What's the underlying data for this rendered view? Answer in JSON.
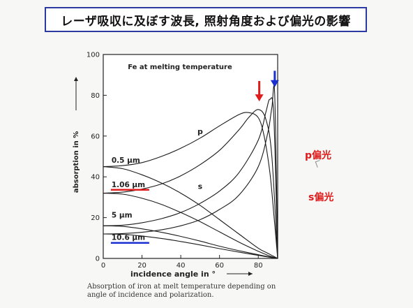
{
  "slide": {
    "title": "レーザ吸収に及ぼす波長, 照射角度および偏光の影響"
  },
  "side_labels": {
    "p": "p偏光",
    "s": "s偏光"
  },
  "caption": {
    "line1": "Absorption of iron at melt temperature depending on",
    "line2": "angle of incidence and polarization."
  },
  "colors": {
    "title_border": "#2a3aa0",
    "side_label": "#e01b1b",
    "red_arrow": "#e01b1b",
    "blue_arrow": "#1a2fd0",
    "red_underline": "#e01b1b",
    "blue_underline": "#1a2fd0"
  },
  "chart_data": {
    "type": "line",
    "title": "Fe at melting temperature",
    "xlabel": "incidence angle in °",
    "ylabel": "absorption in %",
    "xlim": [
      0,
      90
    ],
    "ylim": [
      0,
      100
    ],
    "x_ticks": [
      "0",
      "20",
      "40",
      "60",
      "80"
    ],
    "x_tick_values": [
      0,
      20,
      40,
      60,
      80
    ],
    "y_ticks": [
      "0",
      "20",
      "40",
      "60",
      "80",
      "100"
    ],
    "y_tick_values": [
      0,
      20,
      40,
      60,
      80,
      100
    ],
    "curve_labels": [
      {
        "text": "p",
        "x": 50,
        "y": 61
      },
      {
        "text": "s",
        "x": 50,
        "y": 34
      }
    ],
    "wavelength_labels": [
      {
        "text": "0.5 μm",
        "x": 5,
        "y": 47,
        "underline": "none"
      },
      {
        "text": "1.06 μm",
        "x": 5,
        "y": 35,
        "underline": "red"
      },
      {
        "text": "5 μm",
        "x": 5,
        "y": 20,
        "underline": "none"
      },
      {
        "text": "10.6 μm",
        "x": 5,
        "y": 9,
        "underline": "blue"
      }
    ],
    "series": [
      {
        "wavelength": "0.5 μm",
        "polarization": "p",
        "x": [
          0,
          10,
          20,
          30,
          40,
          50,
          60,
          70,
          75,
          80,
          83,
          86,
          88,
          90
        ],
        "y": [
          45,
          45.5,
          47,
          50,
          54,
          59,
          65,
          70.5,
          71.5,
          69,
          60,
          42,
          22,
          0
        ]
      },
      {
        "wavelength": "0.5 μm",
        "polarization": "s",
        "x": [
          0,
          10,
          20,
          30,
          40,
          50,
          60,
          70,
          80,
          85,
          90
        ],
        "y": [
          45,
          44,
          41,
          37,
          32,
          26,
          19,
          12,
          5,
          2.5,
          0
        ]
      },
      {
        "wavelength": "1.06 μm",
        "polarization": "p",
        "x": [
          0,
          10,
          20,
          30,
          40,
          50,
          60,
          70,
          75,
          80,
          84,
          87,
          90
        ],
        "y": [
          32,
          32.5,
          34,
          36.5,
          40.5,
          46,
          53,
          63,
          69,
          73,
          68,
          50,
          0
        ]
      },
      {
        "wavelength": "1.06 μm",
        "polarization": "s",
        "x": [
          0,
          10,
          20,
          30,
          40,
          50,
          60,
          70,
          80,
          85,
          90
        ],
        "y": [
          32,
          31.5,
          29.5,
          26.5,
          22.5,
          18,
          13,
          8,
          3.5,
          1.5,
          0
        ]
      },
      {
        "wavelength": "5 μm",
        "polarization": "p",
        "x": [
          0,
          10,
          20,
          30,
          40,
          50,
          60,
          70,
          80,
          84,
          86,
          88,
          90
        ],
        "y": [
          16,
          16.3,
          17.5,
          19.5,
          22.5,
          27,
          33,
          42,
          58,
          72,
          78,
          70,
          0
        ]
      },
      {
        "wavelength": "5 μm",
        "polarization": "s",
        "x": [
          0,
          10,
          20,
          30,
          40,
          50,
          60,
          70,
          80,
          85,
          90
        ],
        "y": [
          16,
          15.7,
          14.5,
          12.8,
          10.8,
          8.5,
          6,
          3.8,
          1.8,
          0.9,
          0
        ]
      },
      {
        "wavelength": "10.6 μm",
        "polarization": "p",
        "x": [
          0,
          10,
          20,
          30,
          40,
          50,
          60,
          70,
          80,
          85,
          87,
          88.5,
          90
        ],
        "y": [
          12,
          12.2,
          12.8,
          14,
          16,
          19,
          24,
          31,
          45,
          62,
          74,
          80,
          0
        ]
      },
      {
        "wavelength": "10.6 μm",
        "polarization": "s",
        "x": [
          0,
          10,
          20,
          30,
          40,
          50,
          60,
          70,
          80,
          85,
          90
        ],
        "y": [
          12,
          11.8,
          11,
          9.8,
          8.3,
          6.6,
          4.8,
          3.1,
          1.5,
          0.7,
          0
        ]
      }
    ],
    "markers": [
      {
        "type": "arrow",
        "color": "red",
        "x": 80.5,
        "y_from": 87,
        "y_to": 77
      },
      {
        "type": "arrow",
        "color": "blue",
        "x": 88.5,
        "y_from": 92,
        "y_to": 84
      }
    ],
    "grid": false,
    "legend": "none"
  }
}
